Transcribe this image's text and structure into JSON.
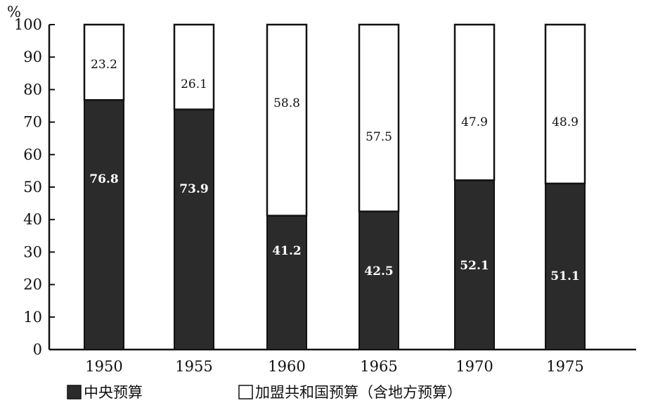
{
  "chart_data": {
    "type": "bar",
    "stacked": true,
    "ylabel": "%",
    "ylim": [
      0,
      100
    ],
    "yticks": [
      0,
      10,
      20,
      30,
      40,
      50,
      60,
      70,
      80,
      90,
      100
    ],
    "categories": [
      "1950",
      "1955",
      "1960",
      "1965",
      "1970",
      "1975"
    ],
    "series": [
      {
        "name": "中央预算",
        "color": "#2b2b2b",
        "label_color": "#ffffff",
        "values": [
          76.8,
          73.9,
          41.2,
          42.5,
          52.1,
          51.1
        ]
      },
      {
        "name": "加盟共和国预算（含地方预算）",
        "color": "#ffffff",
        "label_color": "#111111",
        "values": [
          23.2,
          26.1,
          58.8,
          57.5,
          47.9,
          48.9
        ]
      }
    ],
    "grid": false,
    "legend": "bottom"
  }
}
